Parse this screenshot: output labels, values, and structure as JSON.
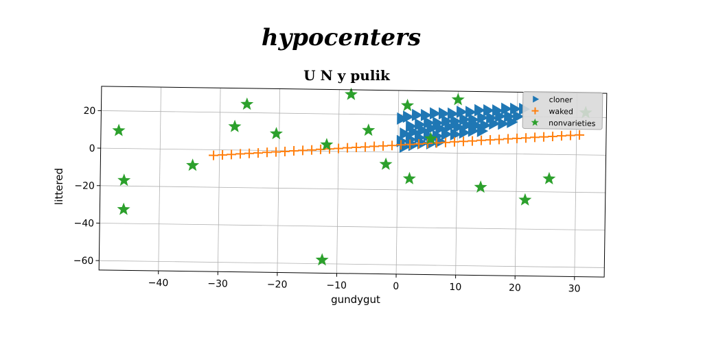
{
  "figure": {
    "suptitle": "hypocenters"
  },
  "chart_data": {
    "type": "scatter",
    "title": "U N y pulik",
    "xlabel": "gundygut",
    "ylabel": "littered",
    "xlim": [
      -50,
      35
    ],
    "ylim": [
      -65,
      33
    ],
    "xticks": [
      -40,
      -30,
      -20,
      -10,
      0,
      10,
      20,
      30
    ],
    "yticks": [
      -60,
      -40,
      -20,
      0,
      20
    ],
    "xtick_labels": [
      "−40",
      "−30",
      "−20",
      "−10",
      "0",
      "10",
      "20",
      "30"
    ],
    "ytick_labels": [
      "−60",
      "−40",
      "−20",
      "0",
      "20"
    ],
    "grid": true,
    "legend_position": "top-right",
    "series": [
      {
        "name": "cloner",
        "marker": "triangle-right",
        "color": "#1f77b4",
        "x": [
          0.5,
          1.5,
          3.0,
          4.5,
          6.0,
          7.5,
          9.0,
          10.5,
          12.0,
          13.5,
          15.0,
          16.5,
          18.0,
          19.5,
          21.0,
          2.0,
          3.5,
          5.0,
          6.5,
          8.0,
          9.5,
          11.0,
          12.5,
          14.0,
          15.5,
          17.0,
          18.5,
          20.0,
          1.0,
          2.5,
          4.0,
          5.5,
          7.0,
          8.5,
          10.0,
          11.5,
          13.0,
          14.5,
          16.0,
          17.5,
          19.0,
          0.5,
          2.0,
          3.5,
          5.0,
          6.5,
          8.0,
          9.5,
          11.0,
          12.5,
          14.0,
          1.0,
          2.5,
          4.0,
          5.5,
          7.0
        ],
        "y": [
          18,
          19,
          20,
          20,
          21,
          21,
          21,
          22,
          22,
          23,
          23,
          23,
          24,
          24,
          24,
          14,
          15,
          16,
          16,
          17,
          17,
          18,
          18,
          19,
          19,
          20,
          20,
          20,
          10,
          11,
          12,
          13,
          13,
          14,
          14,
          15,
          15,
          15,
          16,
          16,
          17,
          6,
          7,
          8,
          9,
          9,
          10,
          10,
          11,
          12,
          12,
          3,
          4,
          5,
          5,
          6
        ]
      },
      {
        "name": "waked",
        "marker": "plus",
        "color": "#ff7f0e",
        "x": [
          -31.0,
          -29.5,
          -28.0,
          -26.5,
          -25.0,
          -23.5,
          -22.0,
          -20.5,
          -19.0,
          -17.5,
          -16.0,
          -14.5,
          -13.0,
          -11.5,
          -10.0,
          -8.5,
          -7.0,
          -5.5,
          -4.0,
          -2.5,
          -1.0,
          0.5,
          2.0,
          3.5,
          5.0,
          6.5,
          8.0,
          9.5,
          11.0,
          12.5,
          14.0,
          15.5,
          17.0,
          18.5,
          20.0,
          21.5,
          23.0,
          24.5,
          26.0,
          27.5,
          29.0,
          30.5
        ],
        "y": [
          -3.0,
          -2.7,
          -2.4,
          -2.0,
          -1.7,
          -1.4,
          -1.0,
          -0.7,
          -0.4,
          0.0,
          0.3,
          0.6,
          1.0,
          1.3,
          1.6,
          2.0,
          2.3,
          2.6,
          3.0,
          3.3,
          3.6,
          4.0,
          4.3,
          4.6,
          5.0,
          5.3,
          5.6,
          6.0,
          6.3,
          6.6,
          7.0,
          7.3,
          7.6,
          8.0,
          8.3,
          8.6,
          9.0,
          9.3,
          9.6,
          10.0,
          10.3,
          10.6
        ]
      },
      {
        "name": "nonvarieties",
        "marker": "star",
        "color": "#2ca02c",
        "x": [
          -8.0,
          10.0,
          31.5,
          -25.5,
          1.5,
          -47.0,
          -27.5,
          -5.0,
          -20.5,
          -12.0,
          5.5,
          -2.0,
          -34.5,
          -46.0,
          2.0,
          14.0,
          25.5,
          21.5,
          -46.0,
          -12.5
        ],
        "y": [
          30.5,
          28.5,
          22.5,
          24.5,
          25.0,
          9.5,
          12.5,
          11.5,
          9.0,
          3.5,
          7.5,
          -6.5,
          -8.5,
          -17.0,
          -14.0,
          -18.0,
          -13.0,
          -24.5,
          -32.5,
          -58.0
        ]
      }
    ]
  }
}
